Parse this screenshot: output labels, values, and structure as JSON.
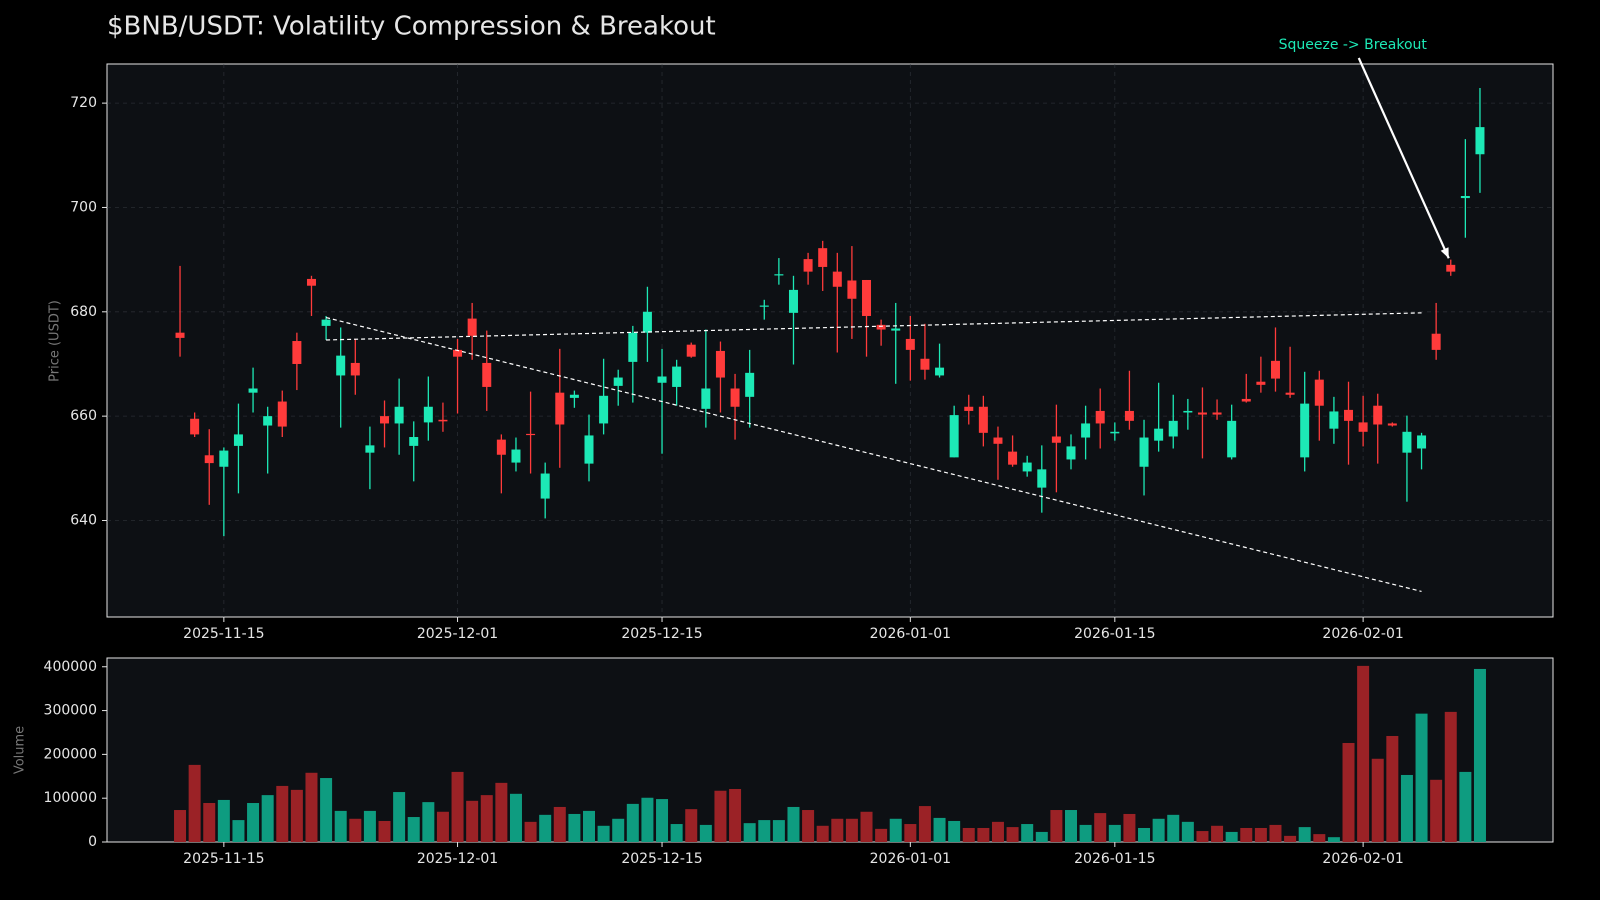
{
  "chart_data": [
    {
      "type": "candlestick",
      "title": "$BNB/USDT: Volatility Compression & Breakout",
      "ylabel": "Price (USDT)",
      "x": [
        "2025-11-12",
        "2025-11-13",
        "2025-11-14",
        "2025-11-15",
        "2025-11-16",
        "2025-11-17",
        "2025-11-18",
        "2025-11-19",
        "2025-11-20",
        "2025-11-21",
        "2025-11-22",
        "2025-11-23",
        "2025-11-24",
        "2025-11-25",
        "2025-11-26",
        "2025-11-27",
        "2025-11-28",
        "2025-11-29",
        "2025-11-30",
        "2025-12-01",
        "2025-12-02",
        "2025-12-03",
        "2025-12-04",
        "2025-12-05",
        "2025-12-06",
        "2025-12-07",
        "2025-12-08",
        "2025-12-09",
        "2025-12-10",
        "2025-12-11",
        "2025-12-12",
        "2025-12-13",
        "2025-12-14",
        "2025-12-15",
        "2025-12-16",
        "2025-12-17",
        "2025-12-18",
        "2025-12-19",
        "2025-12-20",
        "2025-12-21",
        "2025-12-22",
        "2025-12-23",
        "2025-12-24",
        "2025-12-25",
        "2025-12-26",
        "2025-12-27",
        "2025-12-28",
        "2025-12-29",
        "2025-12-30",
        "2025-12-31",
        "2026-01-01",
        "2026-01-02",
        "2026-01-03",
        "2026-01-04",
        "2026-01-05",
        "2026-01-06",
        "2026-01-07",
        "2026-01-08",
        "2026-01-09",
        "2026-01-10",
        "2026-01-11",
        "2026-01-12",
        "2026-01-13",
        "2026-01-14",
        "2026-01-15",
        "2026-01-16",
        "2026-01-17",
        "2026-01-18",
        "2026-01-19",
        "2026-01-20",
        "2026-01-21",
        "2026-01-22",
        "2026-01-23",
        "2026-01-24",
        "2026-01-25",
        "2026-01-26",
        "2026-01-27",
        "2026-01-28",
        "2026-01-29",
        "2026-01-30",
        "2026-01-31",
        "2026-02-01",
        "2026-02-02",
        "2026-02-03",
        "2026-02-04",
        "2026-02-05",
        "2026-02-06",
        "2026-02-07",
        "2026-02-08",
        "2026-02-09"
      ],
      "open": [
        676,
        659.5,
        652.5,
        650.3,
        654.3,
        664.5,
        658.2,
        662.8,
        674.4,
        686.3,
        677.3,
        667.8,
        670.2,
        653,
        660,
        658.6,
        654.3,
        658.8,
        659.3,
        672.7,
        678.7,
        670.2,
        655.5,
        651.1,
        656.6,
        644.2,
        664.5,
        663.5,
        650.9,
        658.6,
        665.8,
        670.4,
        676,
        666.4,
        665.6,
        673.7,
        661.4,
        672.5,
        665.3,
        663.7,
        681,
        687,
        679.8,
        690.1,
        692.2,
        687.7,
        686,
        686.1,
        677.5,
        676.4,
        674.8,
        671,
        667.8,
        652.1,
        661.8,
        661.8,
        655.9,
        653.2,
        649.4,
        646.3,
        656.1,
        651.7,
        655.9,
        661,
        656.7,
        661,
        650.3,
        655.3,
        656.1,
        660.7,
        660.7,
        660.7,
        652.1,
        663.3,
        666.6,
        670.6,
        664.5,
        652.1,
        667,
        657.6,
        661.2,
        658.8,
        662,
        658.6,
        653,
        653.8,
        675.8,
        689,
        701.8,
        710.2
      ],
      "high": [
        688.8,
        660.7,
        657.5,
        654,
        662.4,
        669.3,
        661.8,
        664.9,
        676,
        686.9,
        679.2,
        677,
        674.8,
        658,
        663,
        667.2,
        659,
        667.6,
        662.6,
        674.8,
        681.7,
        676.4,
        656.5,
        655.9,
        664.7,
        651.1,
        672.9,
        664.9,
        660.3,
        671,
        668.9,
        677.3,
        684.8,
        672.9,
        670.8,
        674.1,
        676.6,
        674.3,
        668.1,
        672.7,
        682.3,
        690.3,
        686.9,
        691.3,
        693.6,
        691.3,
        692.6,
        686.1,
        678.5,
        681.7,
        679.2,
        677.7,
        673.9,
        662,
        664.1,
        663.9,
        658,
        656.3,
        652.4,
        654.4,
        662.2,
        656.5,
        662,
        665.3,
        658.8,
        668.7,
        659.3,
        666.4,
        664.1,
        663.3,
        665.5,
        663.2,
        662.2,
        668.1,
        671.4,
        677,
        673.3,
        668.5,
        668.7,
        663.7,
        666.6,
        663.9,
        664.3,
        658.8,
        660.1,
        656.8,
        681.7,
        690,
        713.1,
        722.9
      ],
      "low": [
        671.4,
        656,
        643,
        637,
        645.2,
        660.7,
        649,
        656,
        665,
        679.2,
        674.6,
        657.8,
        664.1,
        646,
        654,
        652.6,
        647.5,
        655.3,
        657,
        660.5,
        670.8,
        661,
        645.2,
        649.4,
        649,
        640.4,
        650.1,
        661.6,
        647.5,
        656.5,
        662,
        662.6,
        670.4,
        652.8,
        662,
        671.2,
        657.8,
        660.7,
        655.5,
        657.8,
        678.5,
        685.2,
        669.9,
        685.2,
        684,
        672.2,
        674.8,
        671.4,
        673.5,
        666.2,
        666.8,
        667,
        667.4,
        652.1,
        658.4,
        654.2,
        647.8,
        650.3,
        648.4,
        641.5,
        645.4,
        649.8,
        651.7,
        653.8,
        655.3,
        657.4,
        644.8,
        653.2,
        653.8,
        657.4,
        651.9,
        659.3,
        651.7,
        662.6,
        664.5,
        664.7,
        663.5,
        649.4,
        655.3,
        654.7,
        650.7,
        654.2,
        650.9,
        658,
        643.6,
        649.8,
        670.8,
        686.9,
        694.2,
        702.8
      ],
      "close": [
        675,
        656.5,
        651,
        653.4,
        656.5,
        665.3,
        660,
        658,
        670,
        685,
        678.5,
        671.6,
        667.8,
        654.4,
        658.6,
        661.8,
        656,
        661.8,
        659,
        671.4,
        675.4,
        665.6,
        652.6,
        653.6,
        656.4,
        649,
        658.4,
        664.1,
        656.3,
        663.9,
        667.4,
        676,
        680,
        667.6,
        669.5,
        671.4,
        665.3,
        667.4,
        661.8,
        668.3,
        681.2,
        687.2,
        684.2,
        687.7,
        688.6,
        684.8,
        682.5,
        679.2,
        676.6,
        676.8,
        672.7,
        668.9,
        669.3,
        660.2,
        661,
        656.8,
        654.7,
        650.7,
        651.1,
        649.8,
        654.9,
        654.2,
        658.6,
        658.6,
        657,
        659.1,
        655.9,
        657.6,
        659.1,
        661,
        660.3,
        660.3,
        659.1,
        662.8,
        666,
        667.2,
        664.1,
        662.4,
        662,
        660.9,
        659.1,
        657,
        658.4,
        658.2,
        657,
        656.3,
        672.7,
        687.7,
        702.2,
        715.4
      ],
      "up_color": "#1de9b6",
      "down_color": "#ff3b3b",
      "xlim": [
        "2025-11-07",
        "2026-02-14"
      ],
      "xticks": [
        "2025-11-15",
        "2025-12-01",
        "2025-12-15",
        "2026-01-01",
        "2026-01-15",
        "2026-02-01"
      ],
      "ylim": [
        621.5,
        727.5
      ],
      "yticks": [
        640,
        660,
        680,
        700,
        720
      ],
      "grid": true,
      "trendlines": [
        {
          "x": [
            "2025-11-22",
            "2026-02-05"
          ],
          "y": [
            674.6,
            679.8
          ],
          "color": "#ffffff"
        },
        {
          "x": [
            "2025-11-22",
            "2026-02-05"
          ],
          "y": [
            678.9,
            626.4
          ],
          "color": "#ffffff"
        }
      ],
      "annotations": [
        {
          "text": "Squeeze -> Breakout",
          "x": "2026-02-07",
          "y": 689.5,
          "color": "#1de9b6"
        }
      ]
    },
    {
      "type": "bar",
      "ylabel": "Volume",
      "values": [
        73000,
        176000,
        89000,
        96000,
        50000,
        89000,
        107000,
        128000,
        119000,
        158000,
        146000,
        71000,
        53000,
        71000,
        48000,
        114000,
        57000,
        91000,
        69000,
        160000,
        94000,
        107000,
        135000,
        110000,
        46000,
        62000,
        80000,
        64000,
        71000,
        37000,
        53000,
        87000,
        101000,
        98000,
        41000,
        75000,
        39000,
        117000,
        121000,
        43000,
        50000,
        50000,
        80000,
        73000,
        37000,
        53000,
        53000,
        69000,
        30000,
        53000,
        41000,
        82000,
        55000,
        48000,
        32000,
        32000,
        46000,
        34000,
        41000,
        23000,
        73000,
        73000,
        39000,
        66000,
        39000,
        64000,
        32000,
        53000,
        62000,
        46000,
        25000,
        37000,
        23000,
        32000,
        32000,
        39000,
        14000,
        34000,
        18000,
        11000,
        226000,
        402000,
        190000,
        242000,
        153000,
        293000,
        142000,
        297000,
        160000,
        395000
      ],
      "up_color": "#0e9c80",
      "down_color": "#9b2226",
      "xticks": [
        "2025-11-15",
        "2025-12-01",
        "2025-12-15",
        "2026-01-01",
        "2026-01-15",
        "2026-02-01"
      ],
      "ylim": [
        0,
        420000
      ],
      "yticks": [
        0,
        100000,
        200000,
        300000,
        400000
      ]
    }
  ]
}
